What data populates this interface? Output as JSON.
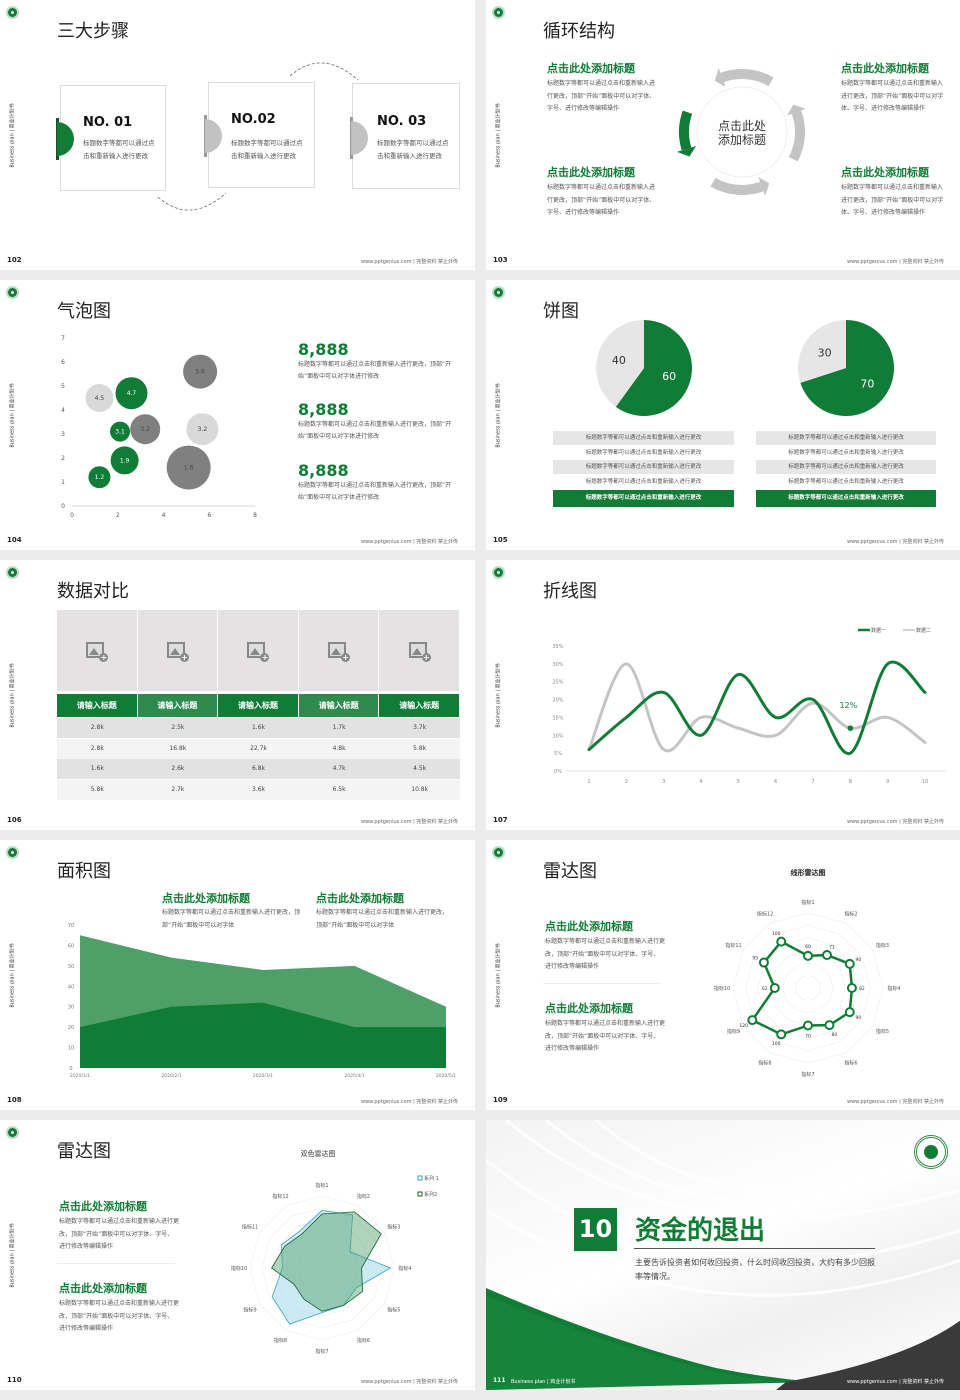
{
  "common": {
    "side_text": "Business plan | 商业计划书",
    "footer": "www.pptgenius.com | 完整资料 禁止外传"
  },
  "colors": {
    "green": "#107c35",
    "green_light": "#4e9f68",
    "gray": "#c4c4c4",
    "gray_light": "#e6e6e6",
    "gray_dark": "#808080",
    "blue": "#3a9fc4"
  },
  "slides": [
    {
      "page": "102",
      "title": "三大步骤",
      "steps": [
        {
          "no": "NO. 01",
          "text": "标题数字等都可以通过点击和重新输入进行更改"
        },
        {
          "no": "NO.02",
          "text": "标题数字等都可以通过点击和重新输入进行更改"
        },
        {
          "no": "NO. 03",
          "text": "标题数字等都可以通过点击和重新输入进行更改"
        }
      ]
    },
    {
      "page": "103",
      "title": "循环结构",
      "center_line1": "点击此处",
      "center_line2": "添加标题",
      "blocks": [
        {
          "title": "点击此处添加标题",
          "text": "标题数字等都可以通过点击和重新输入进行更改，顶部“开始”面板中可以对字体、字号、进行修改等编辑操作"
        },
        {
          "title": "点击此处添加标题",
          "text": "标题数字等都可以通过点击和重新输入进行更改，顶部“开始”面板中可以对字体、字号、进行修改等编辑操作"
        },
        {
          "title": "点击此处添加标题",
          "text": "标题数字等都可以通过点击和重新输入进行更改，顶部“开始”面板中可以对字体、字号、进行修改等编辑操作"
        },
        {
          "title": "点击此处添加标题",
          "text": "标题数字等都可以通过点击和重新输入进行更改，顶部“开始”面板中可以对字体、字号、进行修改等编辑操作"
        }
      ]
    },
    {
      "page": "104",
      "title": "气泡图",
      "stats": [
        {
          "value": "8,888",
          "text": "标题数字等都可以通过点击和重新输入进行更改，顶部“开始”面板中可以对字体进行修改"
        },
        {
          "value": "8,888",
          "text": "标题数字等都可以通过点击和重新输入进行更改，顶部“开始”面板中可以对字体进行修改"
        },
        {
          "value": "8,888",
          "text": "标题数字等都可以通过点击和重新输入进行更改，顶部“开始”面板中可以对字体进行修改"
        }
      ]
    },
    {
      "page": "105",
      "title": "饼图",
      "tables": [
        [
          "标题数字等都可以通过点击和重新输入进行更改",
          "标题数字等都可以通过点击和重新输入进行更改",
          "标题数字等都可以通过点击和重新输入进行更改",
          "标题数字等都可以通过点击和重新输入进行更改",
          "标题数字等都可以通过点击和重新输入进行更改"
        ],
        [
          "标题数字等都可以通过点击和重新输入进行更改",
          "标题数字等都可以通过点击和重新输入进行更改",
          "标题数字等都可以通过点击和重新输入进行更改",
          "标题数字等都可以通过点击和重新输入进行更改",
          "标题数字等都可以通过点击和重新输入进行更改"
        ]
      ]
    },
    {
      "page": "106",
      "title": "数据对比",
      "headers": [
        "请输入标题",
        "请输入标题",
        "请输入标题",
        "请输入标题",
        "请输入标题"
      ],
      "rows": [
        [
          "2.8k",
          "2.5k",
          "1.6k",
          "1.7k",
          "3.7k"
        ],
        [
          "2.8k",
          "16.8k",
          "22.7k",
          "4.8k",
          "5.8k"
        ],
        [
          "1.6k",
          "2.6k",
          "6.8k",
          "4.7k",
          "4.5k"
        ],
        [
          "5.8k",
          "2.7k",
          "3.6k",
          "6.5k",
          "10.8k"
        ]
      ]
    },
    {
      "page": "107",
      "title": "折线图"
    },
    {
      "page": "108",
      "title": "面积图",
      "blocks": [
        {
          "title": "点击此处添加标题",
          "text": "标题数字等都可以通过点击和重新输入进行更改，顶部“开始”面板中可以对字体"
        },
        {
          "title": "点击此处添加标题",
          "text": "标题数字等都可以通过点击和重新输入进行更改，顶部“开始”面板中可以对字体"
        }
      ]
    },
    {
      "page": "109",
      "title": "雷达图",
      "blocks": [
        {
          "title": "点击此处添加标题",
          "text": "标题数字等都可以通过点击和重新输入进行更改，顶部“开始”面板中可以对字体、字号、进行修改等编辑操作"
        },
        {
          "title": "点击此处添加标题",
          "text": "标题数字等都可以通过点击和重新输入进行更改，顶部“开始”面板中可以对字体、字号、进行修改等编辑操作"
        }
      ]
    },
    {
      "page": "110",
      "title": "雷达图",
      "blocks": [
        {
          "title": "点击此处添加标题",
          "text": "标题数字等都可以通过点击和重新输入进行更改，顶部“开始”面板中可以对字体、字号、进行修改等编辑操作"
        },
        {
          "title": "点击此处添加标题",
          "text": "标题数字等都可以通过点击和重新输入进行更改，顶部“开始”面板中可以对字体、字号、进行修改等编辑操作"
        }
      ]
    },
    {
      "page": "111",
      "number": "10",
      "title": "资金的退出",
      "desc": "主要告诉投资者如何收回投资，什么时间收回投资，大约有多少回报率等情况。",
      "footer_left": "Business plan | 商业计划书"
    }
  ],
  "chart_data": [
    {
      "type": "scatter",
      "subtype": "bubble",
      "xlim": [
        0,
        8
      ],
      "ylim": [
        0,
        7
      ],
      "xticks": [
        "0",
        "2",
        "4",
        "6",
        "8"
      ],
      "yticks": [
        "0",
        "1",
        "2",
        "3",
        "4",
        "5",
        "6",
        "7"
      ],
      "points": [
        {
          "x": 1.2,
          "y": 1.2,
          "size": 11,
          "label": "1.2",
          "color": "green"
        },
        {
          "x": 2.3,
          "y": 1.9,
          "size": 14,
          "label": "1.9",
          "color": "green"
        },
        {
          "x": 2.1,
          "y": 3.1,
          "size": 10,
          "label": "3.1",
          "color": "green"
        },
        {
          "x": 3.2,
          "y": 3.2,
          "size": 15,
          "label": "3.2",
          "color": "gray_dark"
        },
        {
          "x": 5.1,
          "y": 1.6,
          "size": 22,
          "label": "1.6",
          "color": "gray_dark"
        },
        {
          "x": 5.7,
          "y": 3.2,
          "size": 16,
          "label": "3.2",
          "color": "gray_light"
        },
        {
          "x": 1.2,
          "y": 4.5,
          "size": 14,
          "label": "4.5",
          "color": "gray_light"
        },
        {
          "x": 2.6,
          "y": 4.7,
          "size": 16,
          "label": "4.7",
          "color": "green"
        },
        {
          "x": 5.6,
          "y": 5.6,
          "size": 17,
          "label": "5.6",
          "color": "gray_dark"
        }
      ]
    },
    {
      "type": "pie",
      "values": [
        60,
        40
      ],
      "labels": [
        "60",
        "40"
      ]
    },
    {
      "type": "pie",
      "values": [
        70,
        30
      ],
      "labels": [
        "70",
        "30"
      ]
    },
    {
      "type": "line",
      "x": [
        "1",
        "2",
        "3",
        "4",
        "5",
        "6",
        "7",
        "8",
        "9",
        "10"
      ],
      "ylim": [
        0,
        35
      ],
      "yticks": [
        "0%",
        "5%",
        "10%",
        "15%",
        "20%",
        "25%",
        "30%",
        "35%"
      ],
      "legend": "top-right",
      "series": [
        {
          "name": "数据一",
          "values": [
            6,
            15,
            22,
            10,
            27,
            15,
            20,
            5,
            30,
            22
          ]
        },
        {
          "name": "数据二",
          "values": [
            6,
            30,
            6,
            15,
            12,
            10,
            19,
            12,
            15,
            8
          ]
        }
      ],
      "annotation": {
        "x": "8",
        "y": 12,
        "text": "12%"
      }
    },
    {
      "type": "area",
      "x": [
        "2020/1/1",
        "2020/2/1",
        "2020/3/1",
        "2020/4/1",
        "2020/5/1"
      ],
      "ylim": [
        0,
        70
      ],
      "yticks": [
        "0",
        "10",
        "20",
        "30",
        "40",
        "50",
        "60",
        "70"
      ],
      "series": [
        {
          "values": [
            65,
            54,
            48,
            50,
            30
          ]
        },
        {
          "values": [
            20,
            30,
            32,
            20,
            20
          ]
        }
      ]
    },
    {
      "type": "radar",
      "title": "线形雷达图",
      "axes": [
        "指标1",
        "指标2",
        "指标3",
        "指标4",
        "指标5",
        "指标6",
        "指标7",
        "指标8",
        "指标9",
        "指标10",
        "指标11",
        "指标12"
      ],
      "rmax": 140,
      "series": [
        {
          "values": [
            60,
            71,
            90,
            82,
            90,
            80,
            70,
            100,
            120,
            62,
            95,
            100
          ]
        }
      ]
    },
    {
      "type": "radar",
      "title": "双色雷达图",
      "legend": "top-right",
      "rmax": 100,
      "axes": [
        "指标1",
        "指标2",
        "指标3",
        "指标4",
        "指标5",
        "指标6",
        "指标7",
        "指标8",
        "指标9",
        "指标10",
        "指标11",
        "指标12"
      ],
      "series": [
        {
          "name": "系列 1",
          "values": [
            80,
            85,
            45,
            95,
            55,
            60,
            62,
            90,
            80,
            55,
            65,
            60
          ]
        },
        {
          "name": "系列2",
          "values": [
            75,
            90,
            95,
            55,
            65,
            60,
            60,
            50,
            45,
            70,
            60,
            55
          ]
        }
      ]
    }
  ]
}
